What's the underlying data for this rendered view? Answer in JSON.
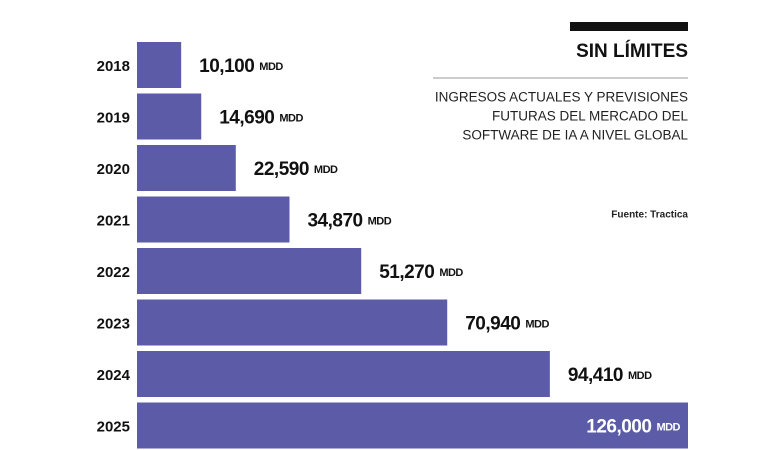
{
  "chart_data": {
    "type": "bar",
    "orientation": "horizontal",
    "title": "SIN LÍMITES",
    "subtitle": [
      "INGRESOS ACTUALES Y PREVISIONES",
      "FUTURAS DEL MERCADO DEL",
      "SOFTWARE DE IA A NIVEL GLOBAL"
    ],
    "source": "Fuente: Tractica",
    "unit": "MDD",
    "categories": [
      "2018",
      "2019",
      "2020",
      "2021",
      "2022",
      "2023",
      "2024",
      "2025"
    ],
    "values": [
      10100,
      14690,
      22590,
      34870,
      51270,
      70940,
      94410,
      126000
    ],
    "value_labels": [
      "10,100",
      "14,690",
      "22,590",
      "34,870",
      "51,270",
      "70,940",
      "94,410",
      "126,000"
    ],
    "color": "#5b5ba8"
  }
}
